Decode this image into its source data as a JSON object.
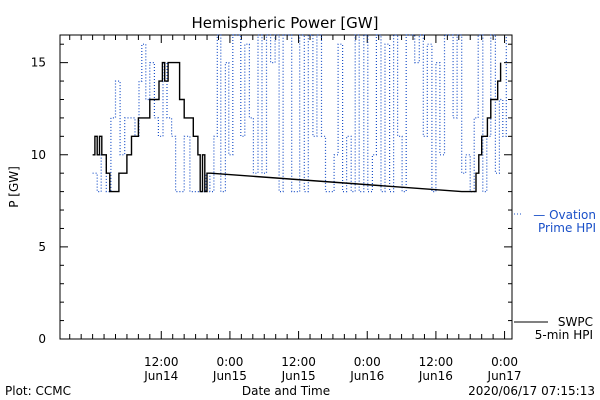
{
  "chart_data": {
    "type": "line",
    "title": "Hemispheric Power [GW]",
    "ylabel": "P [GW]",
    "xlabel": "Date and Time",
    "ylim": [
      0,
      16.5
    ],
    "y_ticks": [
      0,
      5,
      10,
      15
    ],
    "x_hours_range": [
      -5.7,
      73.3
    ],
    "x_ticks": [
      {
        "hour": 12,
        "time": "12:00",
        "date": "Jun14"
      },
      {
        "hour": 24,
        "time": "0:00",
        "date": "Jun15"
      },
      {
        "hour": 36,
        "time": "12:00",
        "date": "Jun15"
      },
      {
        "hour": 48,
        "time": "0:00",
        "date": "Jun16"
      },
      {
        "hour": 60,
        "time": "12:00",
        "date": "Jun16"
      },
      {
        "hour": 72,
        "time": "0:00",
        "date": "Jun17"
      }
    ],
    "series": [
      {
        "name": "SWPC 5-min HPI",
        "legend_lines": [
          "SWPC",
          "5-min HPI"
        ],
        "color": "#000000",
        "style": "solid",
        "points": [
          [
            0,
            10
          ],
          [
            0.4,
            11
          ],
          [
            0.8,
            10
          ],
          [
            1.2,
            11
          ],
          [
            1.6,
            10
          ],
          [
            2.4,
            9
          ],
          [
            3,
            8
          ],
          [
            4,
            8
          ],
          [
            4.6,
            9
          ],
          [
            5.5,
            9
          ],
          [
            6,
            10
          ],
          [
            6.8,
            11
          ],
          [
            8,
            12
          ],
          [
            9,
            12
          ],
          [
            10,
            13
          ],
          [
            11,
            13
          ],
          [
            11.6,
            14
          ],
          [
            12.2,
            15
          ],
          [
            12.6,
            14
          ],
          [
            13.2,
            15
          ],
          [
            14.5,
            15
          ],
          [
            15.2,
            13
          ],
          [
            16,
            12
          ],
          [
            17,
            12
          ],
          [
            17.6,
            11
          ],
          [
            18.4,
            10
          ],
          [
            18.8,
            8
          ],
          [
            19.2,
            10
          ],
          [
            19.6,
            8
          ],
          [
            20,
            9
          ],
          [
            20.6,
            9
          ],
          [
            64.5,
            8
          ],
          [
            66.5,
            8
          ],
          [
            67,
            9
          ],
          [
            67.5,
            10
          ],
          [
            68,
            11
          ],
          [
            68.6,
            11
          ],
          [
            69,
            12
          ],
          [
            69.6,
            13
          ],
          [
            70.2,
            13
          ],
          [
            70.8,
            14
          ],
          [
            71.3,
            15
          ]
        ]
      },
      {
        "name": "Ovation Prime HPI",
        "legend_lines": [
          "— Ovation",
          "Prime HPI"
        ],
        "color": "#1a50c8",
        "style": "dotted",
        "points": [
          [
            0,
            9
          ],
          [
            0.8,
            8
          ],
          [
            1.5,
            10
          ],
          [
            2.4,
            8
          ],
          [
            3.2,
            12
          ],
          [
            4,
            14
          ],
          [
            4.8,
            10
          ],
          [
            5.6,
            12
          ],
          [
            6.5,
            12
          ],
          [
            7.4,
            11
          ],
          [
            8.1,
            14
          ],
          [
            8.6,
            16
          ],
          [
            9.3,
            13
          ],
          [
            10,
            15
          ],
          [
            10.8,
            12
          ],
          [
            11.5,
            11
          ],
          [
            12.3,
            15
          ],
          [
            13,
            12
          ],
          [
            13.8,
            11
          ],
          [
            14.5,
            8
          ],
          [
            15.4,
            8
          ],
          [
            16,
            11
          ],
          [
            17,
            8
          ],
          [
            18.1,
            8
          ],
          [
            19,
            8
          ],
          [
            19.8,
            9
          ],
          [
            20.5,
            8
          ],
          [
            21.2,
            11
          ],
          [
            21.8,
            16.5
          ],
          [
            22.4,
            8
          ],
          [
            23.2,
            15
          ],
          [
            23.8,
            10
          ],
          [
            24.5,
            16.5
          ],
          [
            25.2,
            16.5
          ],
          [
            25.9,
            11
          ],
          [
            26.6,
            16
          ],
          [
            27.4,
            12
          ],
          [
            28.1,
            9
          ],
          [
            28.9,
            16.5
          ],
          [
            29.6,
            9
          ],
          [
            30.4,
            16.5
          ],
          [
            31.1,
            15
          ],
          [
            31.9,
            16.5
          ],
          [
            32.6,
            8
          ],
          [
            33.3,
            16.5
          ],
          [
            34,
            16.5
          ],
          [
            34.8,
            8
          ],
          [
            35.5,
            8
          ],
          [
            36.2,
            16.5
          ],
          [
            37,
            8
          ],
          [
            37.7,
            16.5
          ],
          [
            38.5,
            11
          ],
          [
            39.2,
            16.5
          ],
          [
            40,
            11
          ],
          [
            40.7,
            8
          ],
          [
            41.4,
            8
          ],
          [
            42.2,
            10
          ],
          [
            42.9,
            16
          ],
          [
            43.7,
            8
          ],
          [
            44.4,
            11
          ],
          [
            45.2,
            8
          ],
          [
            45.9,
            16.5
          ],
          [
            46.6,
            8
          ],
          [
            47.4,
            16.5
          ],
          [
            48.1,
            8
          ],
          [
            48.9,
            10
          ],
          [
            49.6,
            16.5
          ],
          [
            50.4,
            8
          ],
          [
            51.1,
            16
          ],
          [
            51.9,
            8
          ],
          [
            52.6,
            16.5
          ],
          [
            53.3,
            11
          ],
          [
            54.1,
            8
          ],
          [
            54.8,
            16.5
          ],
          [
            55.6,
            16.5
          ],
          [
            56.3,
            15
          ],
          [
            57.1,
            16.5
          ],
          [
            57.8,
            11
          ],
          [
            58.5,
            16
          ],
          [
            59.3,
            8
          ],
          [
            60,
            15
          ],
          [
            60.7,
            10
          ],
          [
            61.5,
            16.5
          ],
          [
            62.2,
            16.5
          ],
          [
            63,
            12
          ],
          [
            63.7,
            16.5
          ],
          [
            64.5,
            9
          ],
          [
            65.2,
            10
          ],
          [
            66,
            8
          ],
          [
            66.7,
            12
          ],
          [
            67.4,
            16.5
          ],
          [
            68.2,
            8
          ],
          [
            68.9,
            11
          ],
          [
            69.6,
            16.5
          ],
          [
            70.4,
            9
          ],
          [
            71.1,
            13
          ],
          [
            71.7,
            11
          ],
          [
            72.3,
            16.5
          ]
        ]
      }
    ],
    "grid": false,
    "legend": "right"
  },
  "footer": {
    "plot_credit": "Plot: CCMC",
    "timestamp": "2020/06/17 07:15:13"
  }
}
